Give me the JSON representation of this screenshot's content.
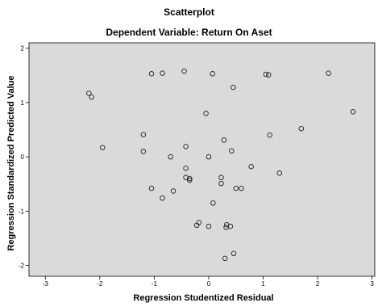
{
  "chart_data": {
    "type": "scatter",
    "title": "Scatterplot",
    "subtitle": "Dependent Variable: Return On Aset",
    "xlabel": "Regression Studentized Residual",
    "ylabel": "Regression Standardized Predicted Value",
    "xlim": [
      -3.3,
      3.05
    ],
    "ylim": [
      -2.2,
      2.1
    ],
    "xticks": [
      "-3",
      "-2",
      "-1",
      "0",
      "1",
      "2",
      "3"
    ],
    "yticks": [
      "-2",
      "-1",
      "0",
      "1",
      "2"
    ],
    "grid": false,
    "plot_background": "#dadada",
    "marker": "open-circle",
    "points": [
      [
        -2.2,
        1.17
      ],
      [
        -2.15,
        1.1
      ],
      [
        -1.95,
        0.17
      ],
      [
        -1.2,
        0.41
      ],
      [
        -1.2,
        0.1
      ],
      [
        -1.05,
        1.53
      ],
      [
        -0.85,
        1.54
      ],
      [
        -0.45,
        1.58
      ],
      [
        0.07,
        1.53
      ],
      [
        1.05,
        1.52
      ],
      [
        1.1,
        1.51
      ],
      [
        2.2,
        1.54
      ],
      [
        0.45,
        1.28
      ],
      [
        -0.05,
        0.8
      ],
      [
        2.65,
        0.83
      ],
      [
        1.7,
        0.52
      ],
      [
        1.12,
        0.4
      ],
      [
        0.28,
        0.31
      ],
      [
        -0.42,
        0.19
      ],
      [
        0.42,
        0.11
      ],
      [
        -0.7,
        0.0
      ],
      [
        0.0,
        0.0
      ],
      [
        0.78,
        -0.18
      ],
      [
        1.3,
        -0.3
      ],
      [
        -0.42,
        -0.21
      ],
      [
        -0.42,
        -0.38
      ],
      [
        -0.35,
        -0.4
      ],
      [
        -0.35,
        -0.43
      ],
      [
        0.23,
        -0.38
      ],
      [
        0.23,
        -0.49
      ],
      [
        -1.05,
        -0.58
      ],
      [
        -0.65,
        -0.63
      ],
      [
        -0.85,
        -0.76
      ],
      [
        0.5,
        -0.58
      ],
      [
        0.6,
        -0.58
      ],
      [
        0.08,
        -0.85
      ],
      [
        -0.18,
        -1.21
      ],
      [
        -0.22,
        -1.26
      ],
      [
        0.0,
        -1.28
      ],
      [
        0.33,
        -1.25
      ],
      [
        0.32,
        -1.3
      ],
      [
        0.4,
        -1.28
      ],
      [
        0.46,
        -1.78
      ],
      [
        0.3,
        -1.87
      ]
    ]
  }
}
